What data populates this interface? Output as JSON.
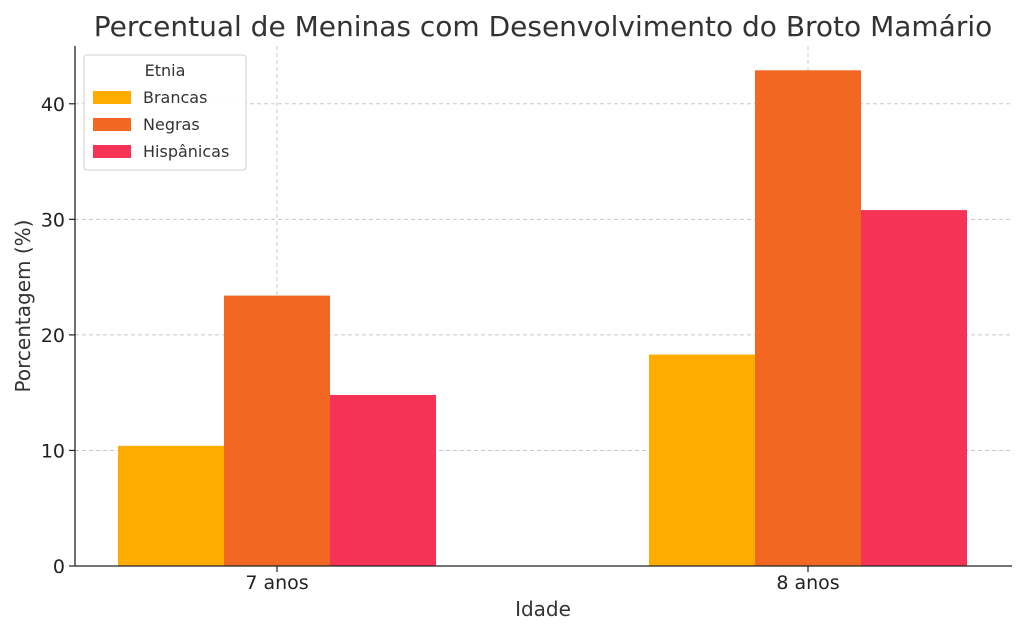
{
  "chart_data": {
    "type": "bar",
    "title": "Percentual de Meninas com Desenvolvimento do Broto Mamário",
    "xlabel": "Idade",
    "ylabel": "Porcentagem (%)",
    "categories": [
      "7 anos",
      "8 anos"
    ],
    "series": [
      {
        "name": "Brancas",
        "values": [
          10.4,
          18.3
        ],
        "color": "#FFAB00"
      },
      {
        "name": "Negras",
        "values": [
          23.4,
          42.9
        ],
        "color": "#F26722"
      },
      {
        "name": "Hispânicas",
        "values": [
          14.8,
          30.8
        ],
        "color": "#F63356"
      }
    ],
    "ylim": [
      0,
      45
    ],
    "yticks": [
      0,
      10,
      20,
      30,
      40
    ],
    "grid": true,
    "legend": {
      "title": "Etnia",
      "position": "top-left"
    }
  }
}
